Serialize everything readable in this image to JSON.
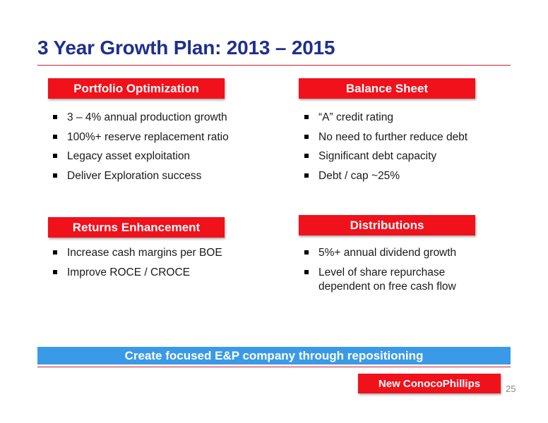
{
  "slide": {
    "title": "3 Year Growth Plan: 2013 – 2015",
    "page_number": "25"
  },
  "sections": {
    "portfolio": {
      "heading": "Portfolio Optimization",
      "items": [
        "3 – 4% annual production growth",
        "100%+ reserve replacement ratio",
        "Legacy asset exploitation",
        "Deliver Exploration success"
      ]
    },
    "balance": {
      "heading": "Balance Sheet",
      "items": [
        "“A” credit rating",
        "No need to further reduce debt",
        "Significant debt capacity",
        "Debt / cap ~25%"
      ]
    },
    "returns": {
      "heading": "Returns Enhancement",
      "items": [
        "Increase cash margins per BOE",
        "Improve ROCE / CROCE"
      ]
    },
    "distributions": {
      "heading": "Distributions",
      "items": [
        "5%+ annual dividend growth",
        "Level of share repurchase dependent on free cash flow"
      ]
    }
  },
  "banner": {
    "text": "Create focused E&P company through repositioning"
  },
  "brand": {
    "label": "New ConocoPhillips"
  },
  "colors": {
    "title_blue": "#1f2f8f",
    "header_red": "#f0111b",
    "banner_blue": "#3b9ae8",
    "rule_red": "#c81e2e"
  }
}
